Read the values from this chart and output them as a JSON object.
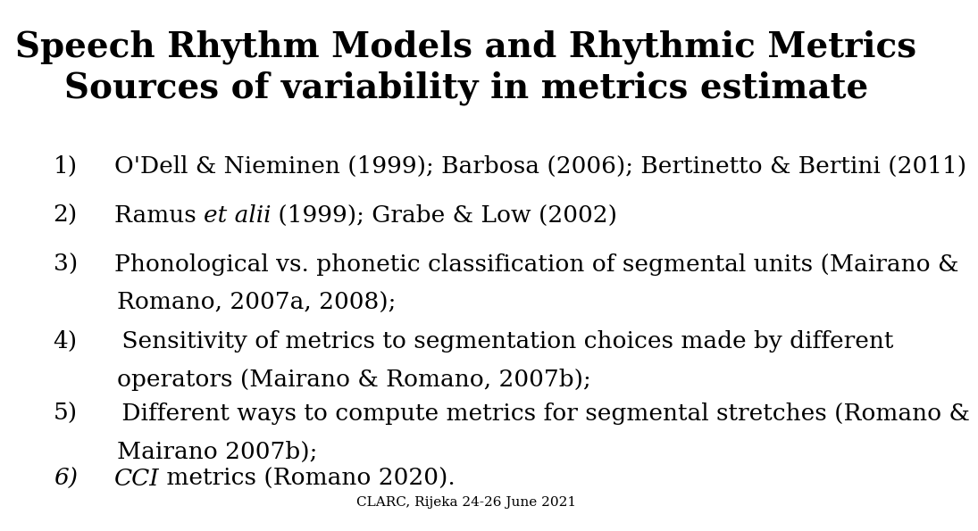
{
  "title_line1": "Speech Rhythm Models and Rhythmic Metrics",
  "title_line2": "Sources of variability in metrics estimate",
  "background_color": "#ffffff",
  "text_color": "#000000",
  "footer": "CLARC, Rijeka 24-26 June 2021",
  "items": [
    {
      "number": "1)",
      "parts": [
        {
          "text": "O'Dell & Nieminen (1999); Barbosa (2006); Bertinetto & Bertini (2011)",
          "style": "normal"
        }
      ],
      "two_lines": false
    },
    {
      "number": "2)",
      "parts": [
        {
          "text": "Ramus ",
          "style": "normal"
        },
        {
          "text": "et alii",
          "style": "italic"
        },
        {
          "text": " (1999); Grabe & Low (2002)",
          "style": "normal"
        }
      ],
      "two_lines": false
    },
    {
      "number": "3)",
      "parts": [
        {
          "text": "Phonological vs. phonetic classification of segmental units (Mairano &",
          "style": "normal"
        },
        {
          "text": "Romano, 2007a, 2008);",
          "style": "normal",
          "line2": true
        }
      ],
      "two_lines": true
    },
    {
      "number": "4)",
      "parts": [
        {
          "text": " Sensitivity of metrics to segmentation choices made by different",
          "style": "normal"
        },
        {
          "text": "operators (Mairano & Romano, 2007b);",
          "style": "normal",
          "line2": true
        }
      ],
      "two_lines": true
    },
    {
      "number": "5)",
      "parts": [
        {
          "text": " Different ways to compute metrics for segmental stretches (Romano &",
          "style": "normal"
        },
        {
          "text": "Mairano 2007b);",
          "style": "normal",
          "line2": true
        }
      ],
      "two_lines": true
    },
    {
      "number": "6)",
      "parts": [
        {
          "text": "CCI",
          "style": "italic"
        },
        {
          "text": " metrics (Romano 2020).",
          "style": "normal"
        }
      ],
      "two_lines": false,
      "italic_number": true
    }
  ],
  "title_fontsize": 28,
  "item_fontsize": 19,
  "footer_fontsize": 11
}
